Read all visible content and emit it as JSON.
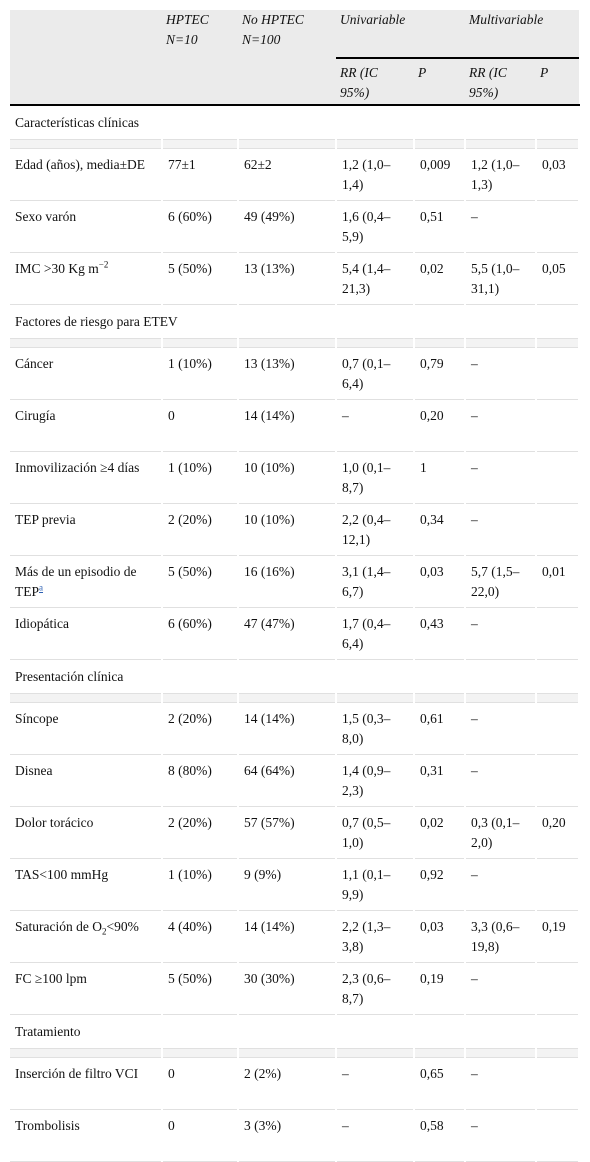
{
  "header": {
    "hptec": "HPTEC",
    "hptec_n": "N=10",
    "no_hptec": "No HPTEC",
    "no_hptec_n": "N=100",
    "univariable": "Univariable",
    "multivariable": "Multivariable",
    "rr_ci": "RR (IC 95%)",
    "p": "P"
  },
  "sections": [
    {
      "title": "Características clínicas",
      "rows": [
        {
          "label": "Edad (años), media±DE",
          "hptec": "77±1",
          "no_hptec": "62±2",
          "uni_rr": "1,2 (1,0–1,4)",
          "uni_p": "0,009",
          "multi_rr": "1,2 (1,0–1,3)",
          "multi_p": "0,03"
        },
        {
          "label": "Sexo varón",
          "hptec": "6 (60%)",
          "no_hptec": "49 (49%)",
          "uni_rr": "1,6 (0,4–5,9)",
          "uni_p": "0,51",
          "multi_rr": "–",
          "multi_p": ""
        },
        {
          "label_main": "IMC >30 Kg m",
          "label_sup": "−2",
          "hptec": "5 (50%)",
          "no_hptec": "13 (13%)",
          "uni_rr": "5,4 (1,4–21,3)",
          "uni_p": "0,02",
          "multi_rr": "5,5 (1,0–31,1)",
          "multi_p": "0,05"
        }
      ]
    },
    {
      "title": "Factores de riesgo para ETEV",
      "rows": [
        {
          "label": "Cáncer",
          "hptec": "1 (10%)",
          "no_hptec": "13 (13%)",
          "uni_rr": "0,7 (0,1–6,4)",
          "uni_p": "0,79",
          "multi_rr": "–",
          "multi_p": ""
        },
        {
          "label": "Cirugía",
          "hptec": "0",
          "no_hptec": "14 (14%)",
          "uni_rr": "–",
          "uni_p": "0,20",
          "multi_rr": "–",
          "multi_p": ""
        },
        {
          "label": "Inmovilización ≥4 días",
          "hptec": "1 (10%)",
          "no_hptec": "10 (10%)",
          "uni_rr": "1,0 (0,1–8,7)",
          "uni_p": "1",
          "multi_rr": "–",
          "multi_p": ""
        },
        {
          "label": "TEP previa",
          "hptec": "2 (20%)",
          "no_hptec": "10 (10%)",
          "uni_rr": "2,2 (0,4–12,1)",
          "uni_p": "0,34",
          "multi_rr": "–",
          "multi_p": ""
        },
        {
          "label_main": "Más de un episodio de TEP",
          "label_fn": "a",
          "hptec": "5 (50%)",
          "no_hptec": "16 (16%)",
          "uni_rr": "3,1 (1,4–6,7)",
          "uni_p": "0,03",
          "multi_rr": "5,7 (1,5–22,0)",
          "multi_p": "0,01"
        },
        {
          "label": "Idiopática",
          "hptec": "6 (60%)",
          "no_hptec": "47 (47%)",
          "uni_rr": "1,7 (0,4–6,4)",
          "uni_p": "0,43",
          "multi_rr": "–",
          "multi_p": ""
        }
      ]
    },
    {
      "title": "Presentación clínica",
      "rows": [
        {
          "label": "Síncope",
          "hptec": "2 (20%)",
          "no_hptec": "14 (14%)",
          "uni_rr": "1,5 (0,3–8,0)",
          "uni_p": "0,61",
          "multi_rr": "–",
          "multi_p": ""
        },
        {
          "label": "Disnea",
          "hptec": "8 (80%)",
          "no_hptec": "64 (64%)",
          "uni_rr": "1,4 (0,9–2,3)",
          "uni_p": "0,31",
          "multi_rr": "–",
          "multi_p": ""
        },
        {
          "label": "Dolor torácico",
          "hptec": "2 (20%)",
          "no_hptec": "57 (57%)",
          "uni_rr": "0,7 (0,5–1,0)",
          "uni_p": "0,02",
          "multi_rr": "0,3 (0,1–2,0)",
          "multi_p": "0,20"
        },
        {
          "label": "TAS<100 mmHg",
          "hptec": "1 (10%)",
          "no_hptec": "9 (9%)",
          "uni_rr": "1,1 (0,1–9,9)",
          "uni_p": "0,92",
          "multi_rr": "–",
          "multi_p": ""
        },
        {
          "label_main": "Saturación de O",
          "label_sub": "2",
          "label_after": "<90%",
          "hptec": "4 (40%)",
          "no_hptec": "14 (14%)",
          "uni_rr": "2,2 (1,3–3,8)",
          "uni_p": "0,03",
          "multi_rr": "3,3 (0,6–19,8)",
          "multi_p": "0,19"
        },
        {
          "label": "FC ≥100 lpm",
          "hptec": "5 (50%)",
          "no_hptec": "30 (30%)",
          "uni_rr": "2,3 (0,6–8,7)",
          "uni_p": "0,19",
          "multi_rr": "–",
          "multi_p": ""
        }
      ]
    },
    {
      "title": "Tratamiento",
      "rows": [
        {
          "label": "Inserción de filtro VCI",
          "hptec": "0",
          "no_hptec": "2 (2%)",
          "uni_rr": "–",
          "uni_p": "0,65",
          "multi_rr": "–",
          "multi_p": ""
        },
        {
          "label": "Trombolisis",
          "hptec": "0",
          "no_hptec": "3 (3%)",
          "uni_rr": "–",
          "uni_p": "0,58",
          "multi_rr": "–",
          "multi_p": ""
        }
      ]
    }
  ]
}
